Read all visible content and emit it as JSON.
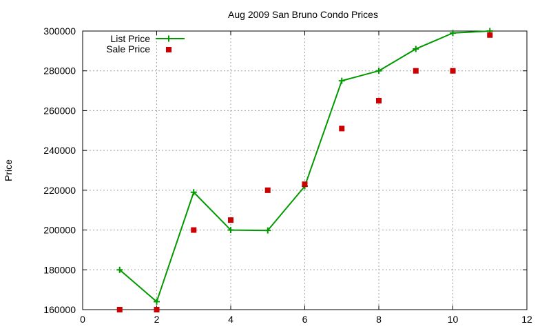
{
  "chart_data": {
    "type": "line",
    "title": "Aug 2009 San Bruno Condo Prices",
    "xlabel": "",
    "ylabel": "Price",
    "xlim": [
      0,
      12
    ],
    "ylim": [
      160000,
      300000
    ],
    "xticks": [
      0,
      2,
      4,
      6,
      8,
      10,
      12
    ],
    "yticks": [
      160000,
      180000,
      200000,
      220000,
      240000,
      260000,
      280000,
      300000
    ],
    "grid": true,
    "legend_position": "top-left",
    "series": [
      {
        "name": "List Price",
        "style": "line+cross",
        "color": "#009900",
        "x": [
          1,
          2,
          3,
          4,
          5,
          6,
          7,
          8,
          9,
          10,
          11
        ],
        "y": [
          180000,
          164000,
          219000,
          200000,
          199800,
          222000,
          275000,
          280000,
          291000,
          299000,
          300000
        ]
      },
      {
        "name": "Sale Price",
        "style": "square",
        "color": "#cc0000",
        "x": [
          1,
          2,
          3,
          4,
          5,
          6,
          7,
          8,
          9,
          10,
          11
        ],
        "y": [
          160000,
          160000,
          200000,
          205000,
          220000,
          223000,
          251000,
          265000,
          280000,
          280000,
          298000
        ]
      }
    ]
  }
}
